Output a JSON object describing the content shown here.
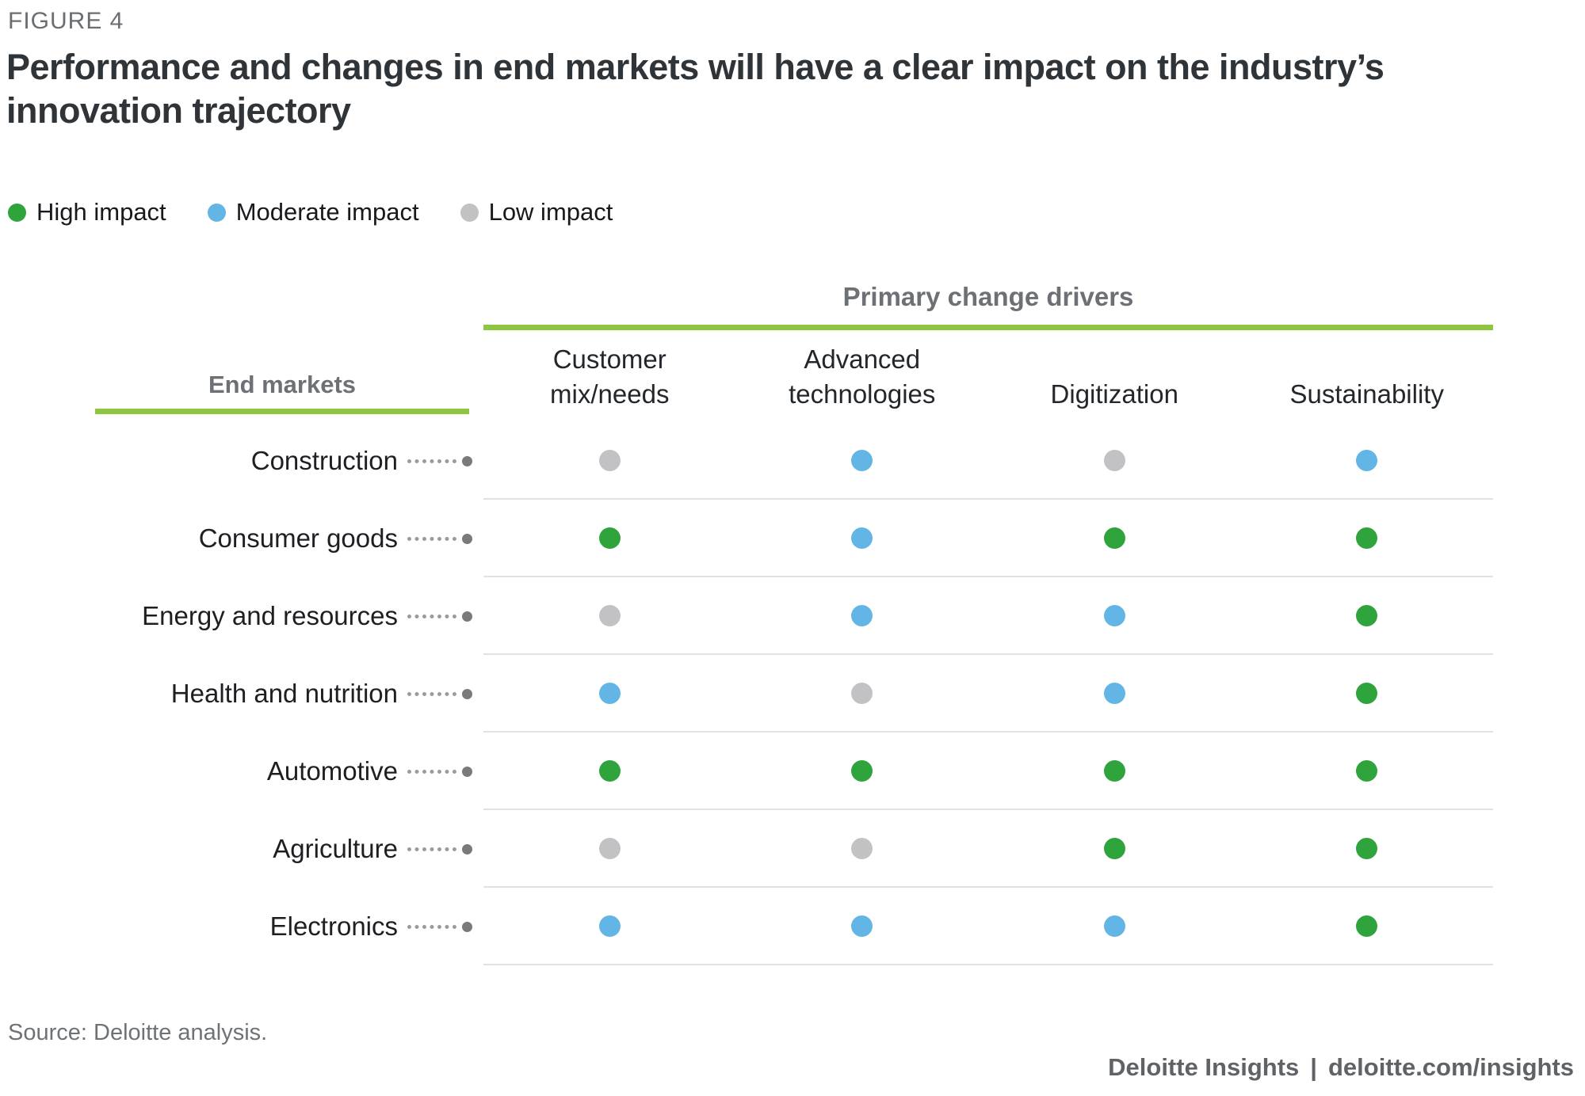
{
  "figure_label": "FIGURE 4",
  "title": "Performance and changes in end markets will have a clear impact on the industry’s innovation trajectory",
  "source": "Source: Deloitte analysis.",
  "footer": {
    "brand": "Deloitte Insights",
    "separator": "|",
    "url": "deloitte.com/insights"
  },
  "colors": {
    "accent_green_line": "#8dc63f",
    "title_text": "#2f3439",
    "gray_heading": "#6d7176",
    "separator_line": "#e2e2e2",
    "leader_dot": "#7a7a7a"
  },
  "chart_data": {
    "type": "heatmap",
    "title": "Performance and changes in end markets will have a clear impact on the industry’s innovation trajectory",
    "col_group_label": "Primary change drivers",
    "row_group_label": "End markets",
    "columns": [
      "Customer mix/needs",
      "Advanced technologies",
      "Digitization",
      "Sustainability"
    ],
    "rows": [
      "Construction",
      "Consumer goods",
      "Energy and resources",
      "Health and nutrition",
      "Automotive",
      "Agriculture",
      "Electronics"
    ],
    "values": [
      [
        "low",
        "moderate",
        "low",
        "moderate"
      ],
      [
        "high",
        "moderate",
        "high",
        "high"
      ],
      [
        "low",
        "moderate",
        "moderate",
        "high"
      ],
      [
        "moderate",
        "low",
        "moderate",
        "high"
      ],
      [
        "high",
        "high",
        "high",
        "high"
      ],
      [
        "low",
        "low",
        "high",
        "high"
      ],
      [
        "moderate",
        "moderate",
        "moderate",
        "high"
      ]
    ],
    "legend": [
      {
        "label": "High impact",
        "level": "high"
      },
      {
        "label": "Moderate impact",
        "level": "moderate"
      },
      {
        "label": "Low impact",
        "level": "low"
      }
    ],
    "impact_colors": {
      "high": "#2fa33c",
      "moderate": "#62b5e5",
      "low": "#c2c2c4"
    },
    "layout": {
      "grid": "horizontal separators between rows",
      "legend_position": "top-left"
    }
  }
}
